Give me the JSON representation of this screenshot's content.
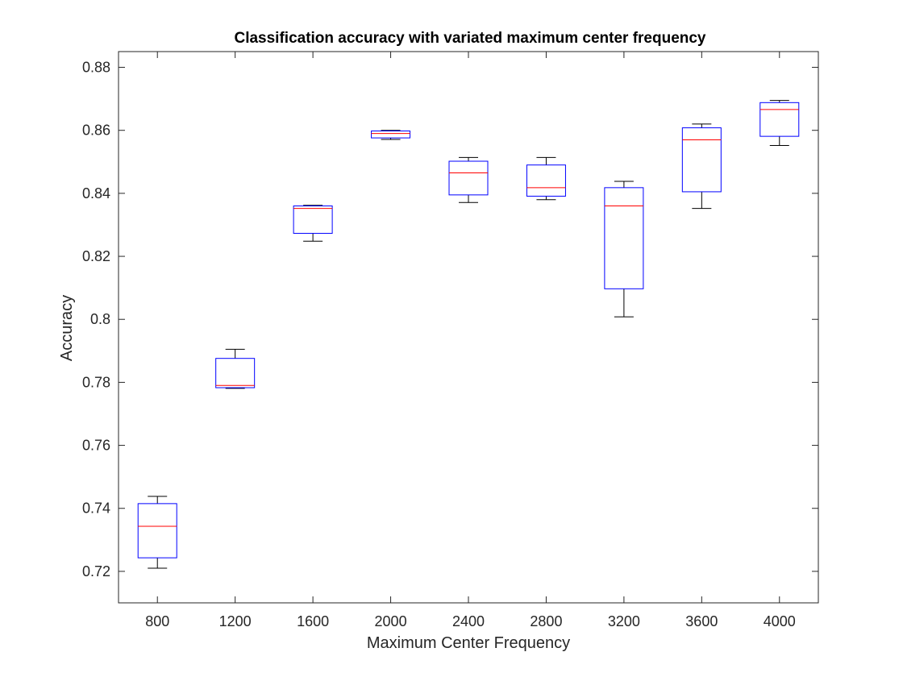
{
  "chart_data": {
    "type": "box",
    "title": "Classification accuracy with variated maximum center frequency",
    "xlabel": "Maximum Center Frequency",
    "ylabel": "Accuracy",
    "ylim": [
      0.71,
      0.885
    ],
    "yticks": [
      "0.72",
      "0.74",
      "0.76",
      "0.78",
      "0.8",
      "0.82",
      "0.84",
      "0.86",
      "0.88"
    ],
    "categories": [
      "800",
      "1200",
      "1600",
      "2000",
      "2400",
      "2800",
      "3200",
      "3600",
      "4000"
    ],
    "boxes": [
      {
        "min": 0.721,
        "q1": 0.7243,
        "median": 0.7343,
        "q3": 0.7415,
        "max": 0.7438
      },
      {
        "min": 0.7781,
        "q1": 0.7783,
        "median": 0.779,
        "q3": 0.7876,
        "max": 0.7905
      },
      {
        "min": 0.8248,
        "q1": 0.8273,
        "median": 0.8352,
        "q3": 0.836,
        "max": 0.8362
      },
      {
        "min": 0.8571,
        "q1": 0.8576,
        "median": 0.859,
        "q3": 0.8598,
        "max": 0.86
      },
      {
        "min": 0.8371,
        "q1": 0.8395,
        "median": 0.8465,
        "q3": 0.8502,
        "max": 0.8514
      },
      {
        "min": 0.838,
        "q1": 0.8391,
        "median": 0.8418,
        "q3": 0.849,
        "max": 0.8514
      },
      {
        "min": 0.8008,
        "q1": 0.8097,
        "median": 0.836,
        "q3": 0.8418,
        "max": 0.8438
      },
      {
        "min": 0.8352,
        "q1": 0.8405,
        "median": 0.857,
        "q3": 0.8608,
        "max": 0.862
      },
      {
        "min": 0.8552,
        "q1": 0.8581,
        "median": 0.8666,
        "q3": 0.8688,
        "max": 0.8695
      }
    ],
    "colors": {
      "box": "#0000ff",
      "median": "#ff0000",
      "whisker": "#000000",
      "axis": "#262626"
    },
    "grid": false
  }
}
